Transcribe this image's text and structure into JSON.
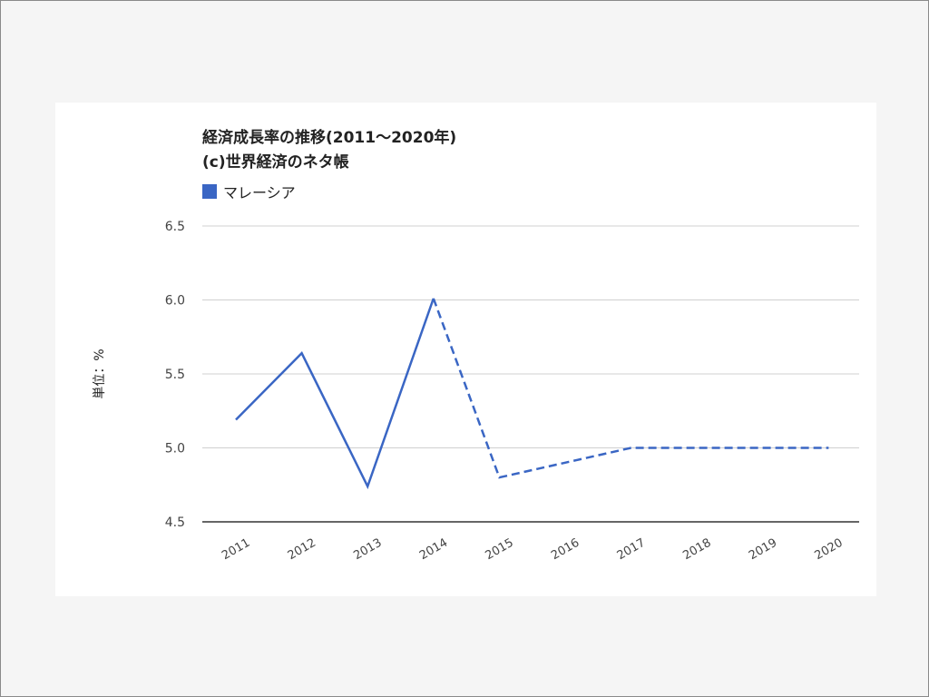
{
  "chart_data": {
    "type": "line",
    "title": "経済成長率の推移(2011～2020年)",
    "subtitle": "(c)世界経済のネタ帳",
    "xlabel": "",
    "ylabel": "単位：%",
    "categories": [
      "2011",
      "2012",
      "2013",
      "2014",
      "2015",
      "2016",
      "2017",
      "2018",
      "2019",
      "2020"
    ],
    "series": [
      {
        "name": "マレーシア",
        "color": "#3a66c4",
        "values": [
          5.19,
          5.64,
          4.74,
          6.01,
          4.8,
          4.9,
          5.0,
          5.0,
          5.0,
          5.0
        ],
        "dashed_from_index": 3
      }
    ],
    "ylim": [
      4.5,
      6.5
    ],
    "yticks": [
      "6.5",
      "6.0",
      "5.5",
      "5.0",
      "4.5"
    ],
    "grid": true,
    "legend_position": "top-left"
  }
}
